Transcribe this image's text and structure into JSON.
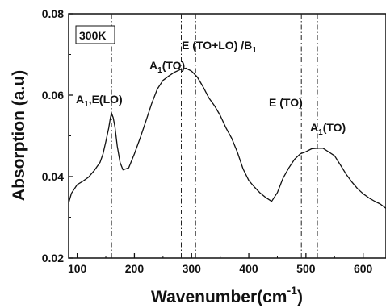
{
  "chart_data": {
    "type": "line",
    "xlabel": "Wavenumber(cm",
    "xlabel_sup": "-1",
    "xlabel_tail": ")",
    "ylabel": "Absorption (a.u)",
    "xlim": [
      85,
      640
    ],
    "ylim": [
      0.02,
      0.08
    ],
    "x_ticks": [
      100,
      200,
      300,
      400,
      500,
      600
    ],
    "x_tick_labels": [
      "100",
      "200",
      "300",
      "400",
      "500",
      "600"
    ],
    "y_ticks": [
      0.02,
      0.04,
      0.06,
      0.08
    ],
    "y_tick_labels": [
      "0.02",
      "0.04",
      "0.06",
      "0.08"
    ],
    "grid": false,
    "line_color": "#111111",
    "temperature_label": "300K",
    "mode_lines": [
      160,
      282,
      307,
      492,
      520
    ],
    "annotations": [
      {
        "main": "A",
        "sub": "1",
        "tail": ",E(LO)"
      },
      {
        "main": "A",
        "sub": "1",
        "tail": "(TO)"
      },
      {
        "main": "E (TO+LO) /B",
        "sub": "1",
        "tail": ""
      },
      {
        "main": "E (TO)",
        "sub": "",
        "tail": ""
      },
      {
        "main": "A",
        "sub": "1",
        "tail": "(TO)"
      }
    ],
    "series": [
      {
        "x": [
          85,
          90,
          100,
          110,
          120,
          130,
          140,
          145,
          150,
          155,
          158,
          160,
          163,
          166,
          170,
          175,
          180,
          190,
          200,
          210,
          220,
          230,
          240,
          250,
          260,
          270,
          280,
          290,
          300,
          310,
          320,
          330,
          340,
          350,
          360,
          370,
          380,
          390,
          400,
          410,
          420,
          430,
          440,
          450,
          460,
          470,
          480,
          490,
          500,
          510,
          520,
          530,
          540,
          550,
          560,
          570,
          580,
          590,
          600,
          610,
          620,
          630,
          640
        ],
        "y": [
          0.0335,
          0.036,
          0.038,
          0.039,
          0.04,
          0.0415,
          0.0435,
          0.0455,
          0.0485,
          0.052,
          0.0545,
          0.0555,
          0.0545,
          0.052,
          0.0475,
          0.0435,
          0.0415,
          0.042,
          0.0455,
          0.0495,
          0.0535,
          0.058,
          0.0615,
          0.0635,
          0.0648,
          0.0655,
          0.0662,
          0.0665,
          0.066,
          0.0645,
          0.062,
          0.0595,
          0.0575,
          0.055,
          0.052,
          0.0495,
          0.046,
          0.042,
          0.039,
          0.0375,
          0.036,
          0.0348,
          0.0338,
          0.036,
          0.0395,
          0.042,
          0.0442,
          0.0455,
          0.046,
          0.0468,
          0.047,
          0.047,
          0.0462,
          0.045,
          0.043,
          0.0408,
          0.0388,
          0.037,
          0.0358,
          0.0348,
          0.034,
          0.0332,
          0.0322
        ]
      }
    ]
  }
}
